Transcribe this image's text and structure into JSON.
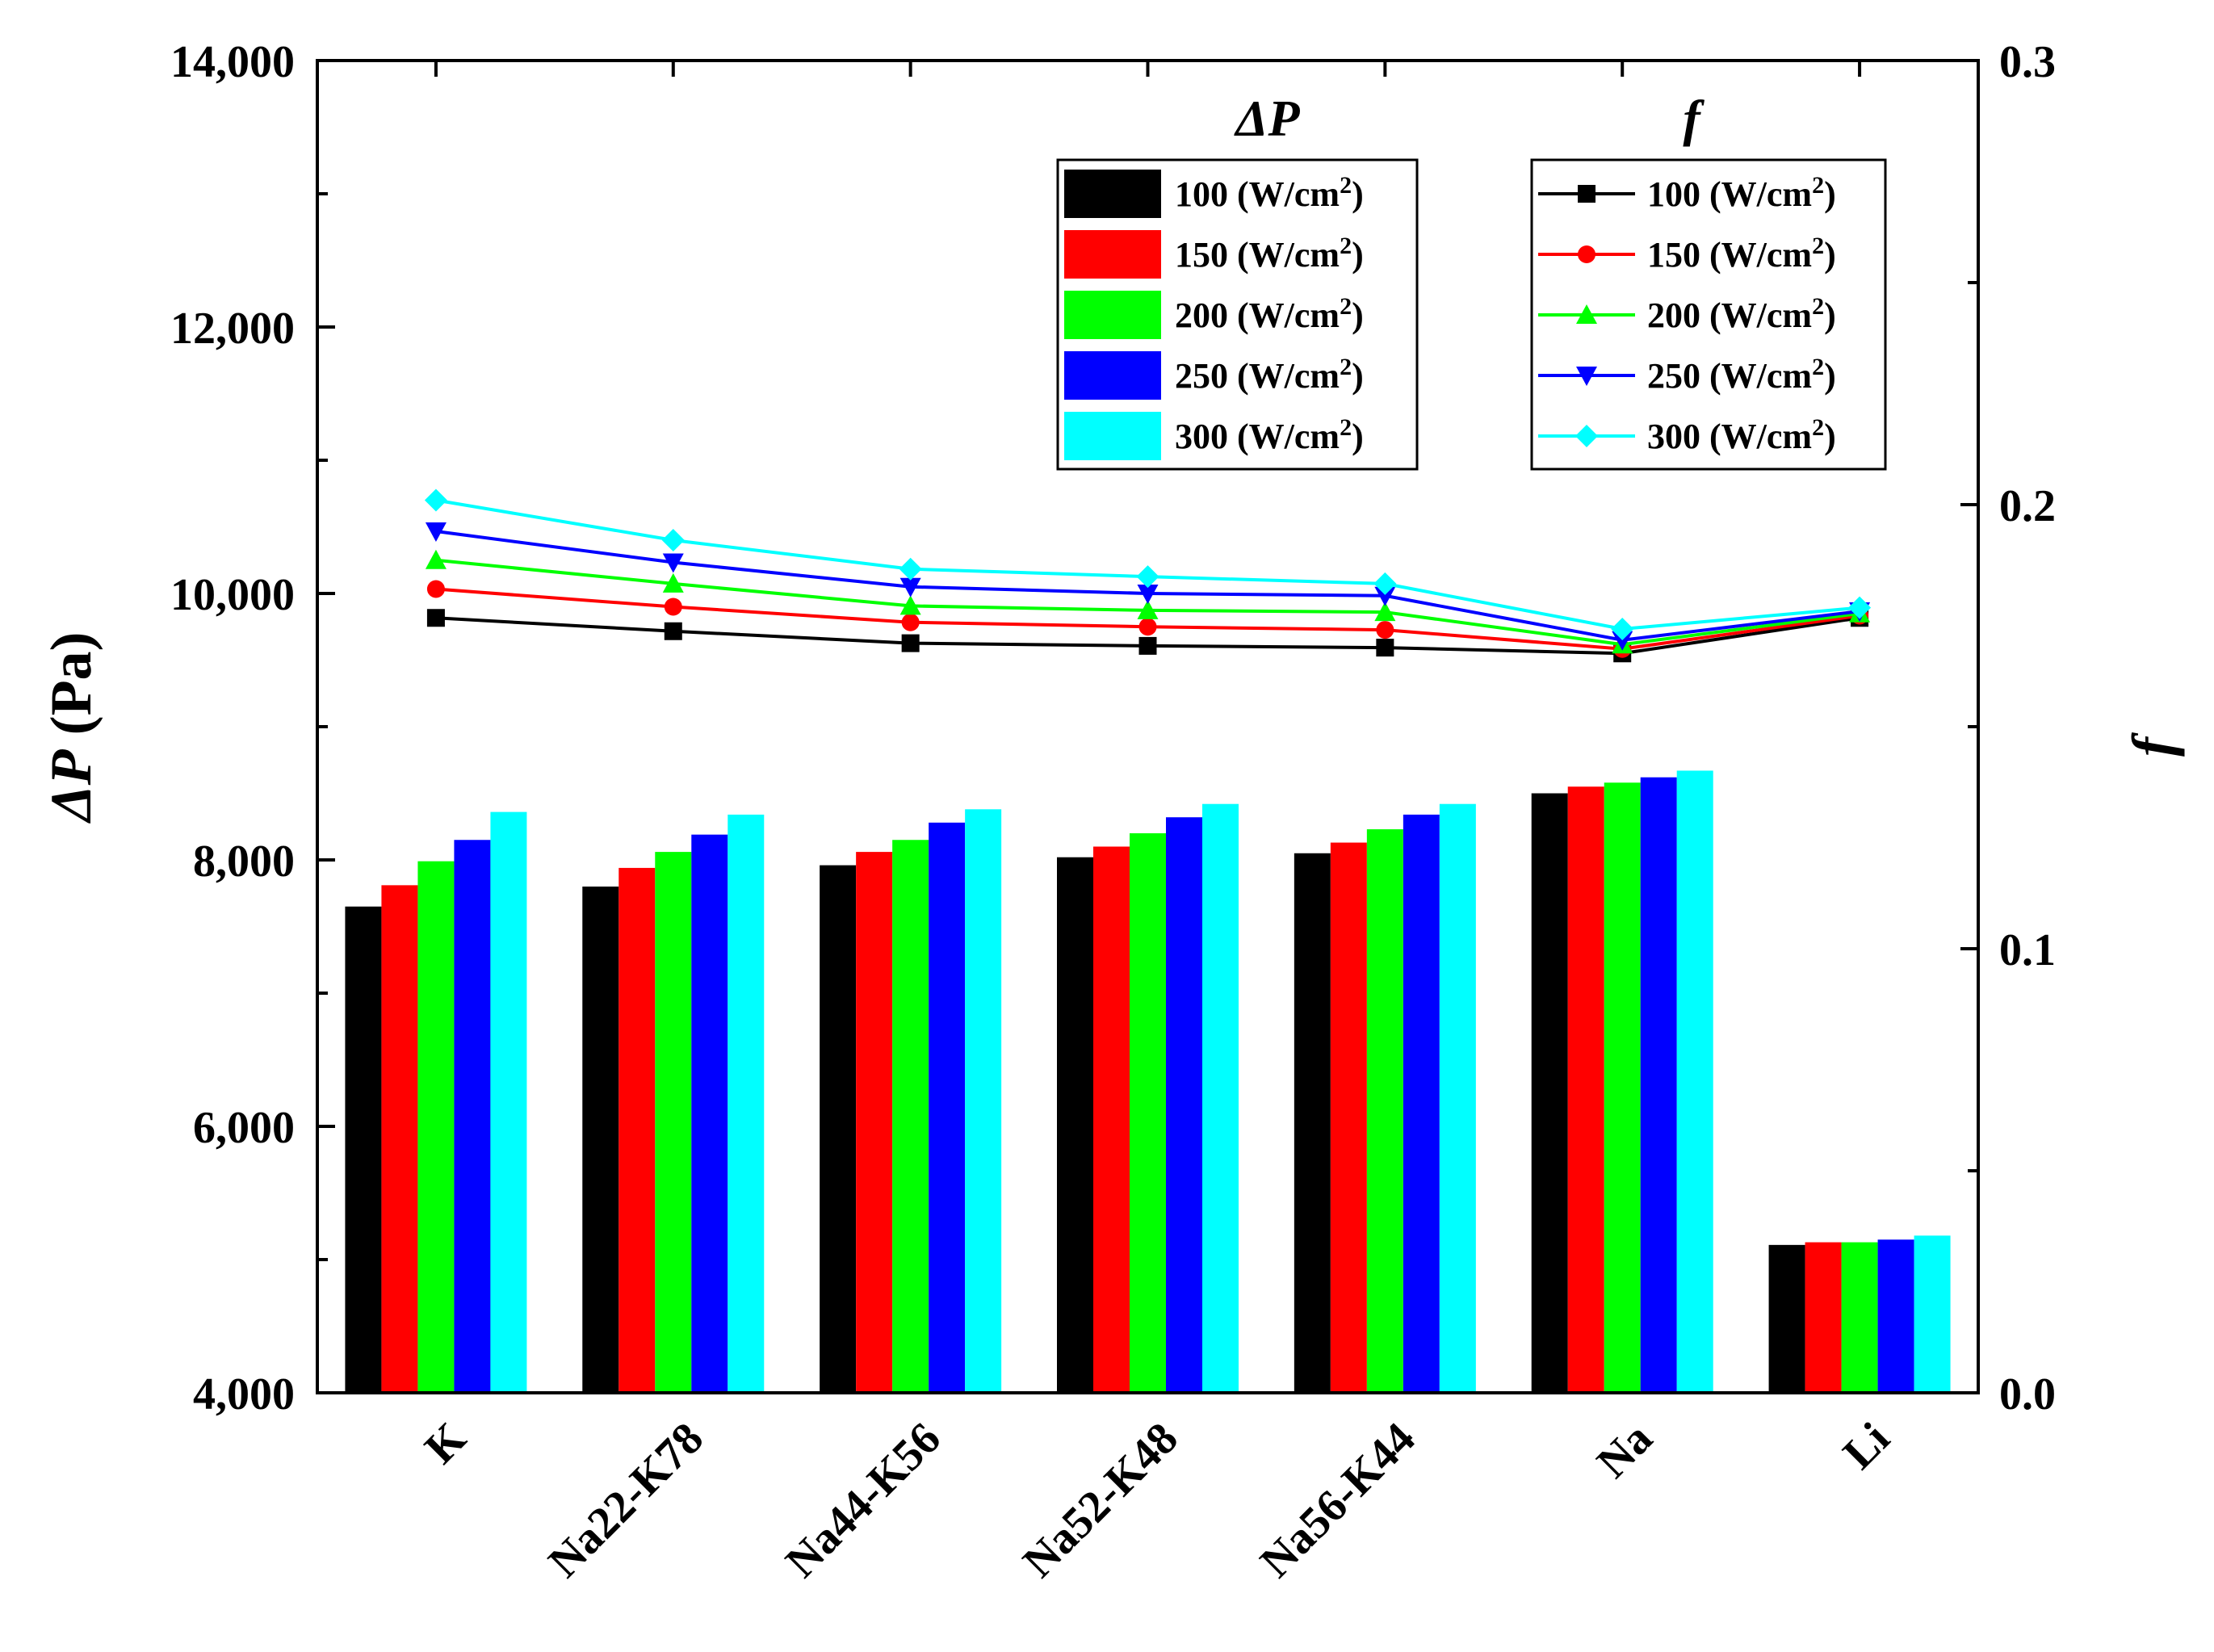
{
  "chart_data": {
    "type": "bar",
    "categories": [
      "K",
      "Na22-K78",
      "Na44-K56",
      "Na52-K48",
      "Na56-K44",
      "Na",
      "Li"
    ],
    "y_left": {
      "label_symbol": "ΔP",
      "label_unit": "(Pa)",
      "ylim": [
        4000,
        14000
      ],
      "ticks": [
        "4,000",
        "6,000",
        "8,000",
        "10,000",
        "12,000",
        "14,000"
      ]
    },
    "y_right": {
      "label": "f",
      "ylim": [
        0.0,
        0.3
      ],
      "ticks": [
        "0.0",
        "0.1",
        "0.2",
        "0.3"
      ]
    },
    "legend_titles": {
      "bars": "ΔP",
      "lines": "f"
    },
    "series": [
      {
        "name": "100 (W/cm²)",
        "unit_base": "100 (W/cm",
        "unit_sup": "2",
        "unit_close": ")",
        "color": "#000000",
        "marker": "square",
        "bars": [
          7650,
          7800,
          7960,
          8020,
          8050,
          8500,
          5110
        ],
        "f": [
          0.1745,
          0.1715,
          0.1688,
          0.1682,
          0.1678,
          0.1665,
          0.1745
        ]
      },
      {
        "name": "150 (W/cm²)",
        "unit_base": "150 (W/cm",
        "unit_sup": "2",
        "unit_close": ")",
        "color": "#ff0000",
        "marker": "circle",
        "bars": [
          7810,
          7940,
          8060,
          8100,
          8130,
          8550,
          5130
        ],
        "f": [
          0.181,
          0.177,
          0.1735,
          0.1725,
          0.1718,
          0.1675,
          0.175
        ]
      },
      {
        "name": "200 (W/cm²)",
        "unit_base": "200 (W/cm",
        "unit_sup": "2",
        "unit_close": ")",
        "color": "#00ff00",
        "marker": "triangle-up",
        "bars": [
          7990,
          8060,
          8150,
          8200,
          8230,
          8580,
          5130
        ],
        "f": [
          0.1875,
          0.1822,
          0.1772,
          0.1762,
          0.1758,
          0.1685,
          0.1755
        ]
      },
      {
        "name": "250 (W/cm²)",
        "unit_base": "250 (W/cm",
        "unit_sup": "2",
        "unit_close": ")",
        "color": "#0000ff",
        "marker": "triangle-down",
        "bars": [
          8150,
          8190,
          8280,
          8320,
          8340,
          8620,
          5150
        ],
        "f": [
          0.194,
          0.187,
          0.1815,
          0.18,
          0.1795,
          0.1695,
          0.176
        ]
      },
      {
        "name": "300 (W/cm²)",
        "unit_base": "300 (W/cm",
        "unit_sup": "2",
        "unit_close": ")",
        "color": "#00ffff",
        "marker": "diamond",
        "bars": [
          8360,
          8340,
          8380,
          8420,
          8420,
          8670,
          5180
        ],
        "f": [
          0.201,
          0.192,
          0.1855,
          0.1838,
          0.1822,
          0.172,
          0.1768
        ]
      }
    ]
  }
}
